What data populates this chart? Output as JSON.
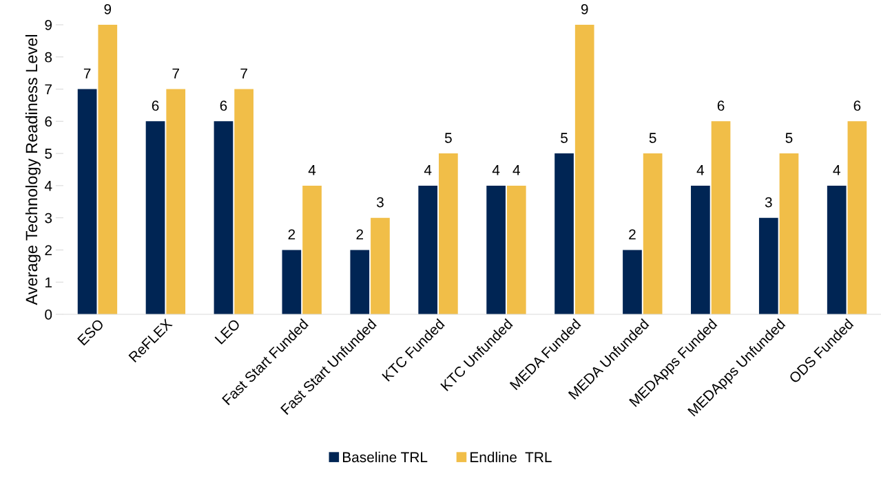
{
  "chart_data": {
    "type": "bar",
    "ylabel": "Average Technology Readiness Level",
    "categories": [
      "ESO",
      "ReFLEX",
      "LEO",
      "Fast Start Funded",
      "Fast Start Unfunded",
      "KTC Funded",
      "KTC Unfunded",
      "MEDA Funded",
      "MEDA Unfunded",
      "MEDApps Funded",
      "MEDApps Unfunded",
      "ODS Funded"
    ],
    "series": [
      {
        "name": "Baseline TRL",
        "color": "#002554",
        "values": [
          7,
          6,
          6,
          2,
          2,
          4,
          4,
          5,
          2,
          4,
          3,
          4
        ]
      },
      {
        "name": "Endline  TRL",
        "color": "#f1be48",
        "values": [
          9,
          7,
          7,
          4,
          3,
          5,
          4,
          9,
          5,
          6,
          5,
          6
        ]
      }
    ],
    "ylim": [
      0,
      9
    ],
    "yticks": [
      0,
      1,
      2,
      3,
      4,
      5,
      6,
      7,
      8,
      9
    ],
    "data_labels": true,
    "legend": "bottom",
    "grid": false
  }
}
